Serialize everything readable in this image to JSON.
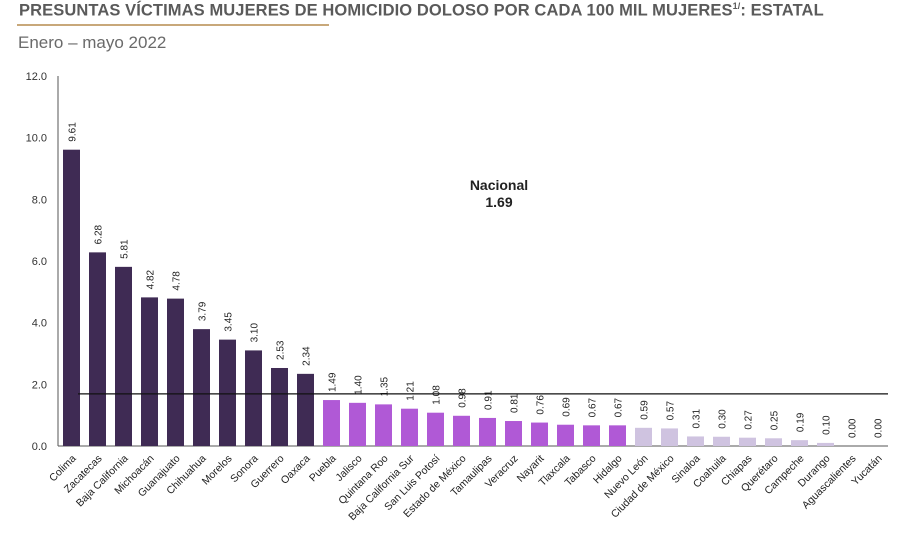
{
  "header": {
    "title_main": "PRESUNTAS VÍCTIMAS MUJERES DE HOMICIDIO DOLOSO POR CADA 100 MIL MUJERES",
    "title_sup": "1/",
    "title_suffix": ": ESTATAL",
    "subtitle": "Enero – mayo 2022"
  },
  "chart_data": {
    "type": "bar",
    "title": "PRESUNTAS VÍCTIMAS MUJERES DE HOMICIDIO DOLOSO POR CADA 100 MIL MUJERES1/: ESTATAL",
    "subtitle": "Enero – mayo 2022",
    "categories": [
      "Colima",
      "Zacatecas",
      "Baja California",
      "Michoacán",
      "Guanajuato",
      "Chihuahua",
      "Morelos",
      "Sonora",
      "Guerrero",
      "Oaxaca",
      "Puebla",
      "Jalisco",
      "Quintana Roo",
      "Baja California Sur",
      "San Luis Potosí",
      "Estado de México",
      "Tamaulipas",
      "Veracruz",
      "Nayarit",
      "Tlaxcala",
      "Tabasco",
      "Hidalgo",
      "Nuevo León",
      "Ciudad de México",
      "Sinaloa",
      "Coahuila",
      "Chiapas",
      "Querétaro",
      "Campeche",
      "Durango",
      "Aguascalientes",
      "Yucatán"
    ],
    "values": [
      9.61,
      6.28,
      5.81,
      4.82,
      4.78,
      3.79,
      3.45,
      3.1,
      2.53,
      2.34,
      1.49,
      1.4,
      1.35,
      1.21,
      1.08,
      0.98,
      0.91,
      0.81,
      0.76,
      0.69,
      0.67,
      0.67,
      0.59,
      0.57,
      0.31,
      0.3,
      0.27,
      0.25,
      0.19,
      0.1,
      0.0,
      0.0
    ],
    "value_labels": [
      "9.61",
      "6.28",
      "5.81",
      "4.82",
      "4.78",
      "3.79",
      "3.45",
      "3.10",
      "2.53",
      "2.34",
      "1.49",
      "1.40",
      "1.35",
      "1.21",
      "1.08",
      "0.98",
      "0.91",
      "0.81",
      "0.76",
      "0.69",
      "0.67",
      "0.67",
      "0.59",
      "0.57",
      "0.31",
      "0.30",
      "0.27",
      "0.25",
      "0.19",
      "0.10",
      "0.00",
      "0.00"
    ],
    "group": [
      "high",
      "high",
      "high",
      "high",
      "high",
      "high",
      "high",
      "high",
      "high",
      "high",
      "mid",
      "mid",
      "mid",
      "mid",
      "mid",
      "mid",
      "mid",
      "mid",
      "mid",
      "mid",
      "mid",
      "mid",
      "low",
      "low",
      "low",
      "low",
      "low",
      "low",
      "low",
      "low",
      "low",
      "low"
    ],
    "colors": {
      "high": "#3f2b54",
      "mid": "#b059d6",
      "low": "#cfc3e0"
    },
    "ylim": [
      0,
      12
    ],
    "yticks": [
      "0.0",
      "2.0",
      "4.0",
      "6.0",
      "8.0",
      "10.0",
      "12.0"
    ],
    "ytick_values": [
      0,
      2,
      4,
      6,
      8,
      10,
      12
    ],
    "reference_line": {
      "label": "Nacional",
      "value": 1.69,
      "value_label": "1.69"
    },
    "grid": false,
    "legend": "none"
  }
}
